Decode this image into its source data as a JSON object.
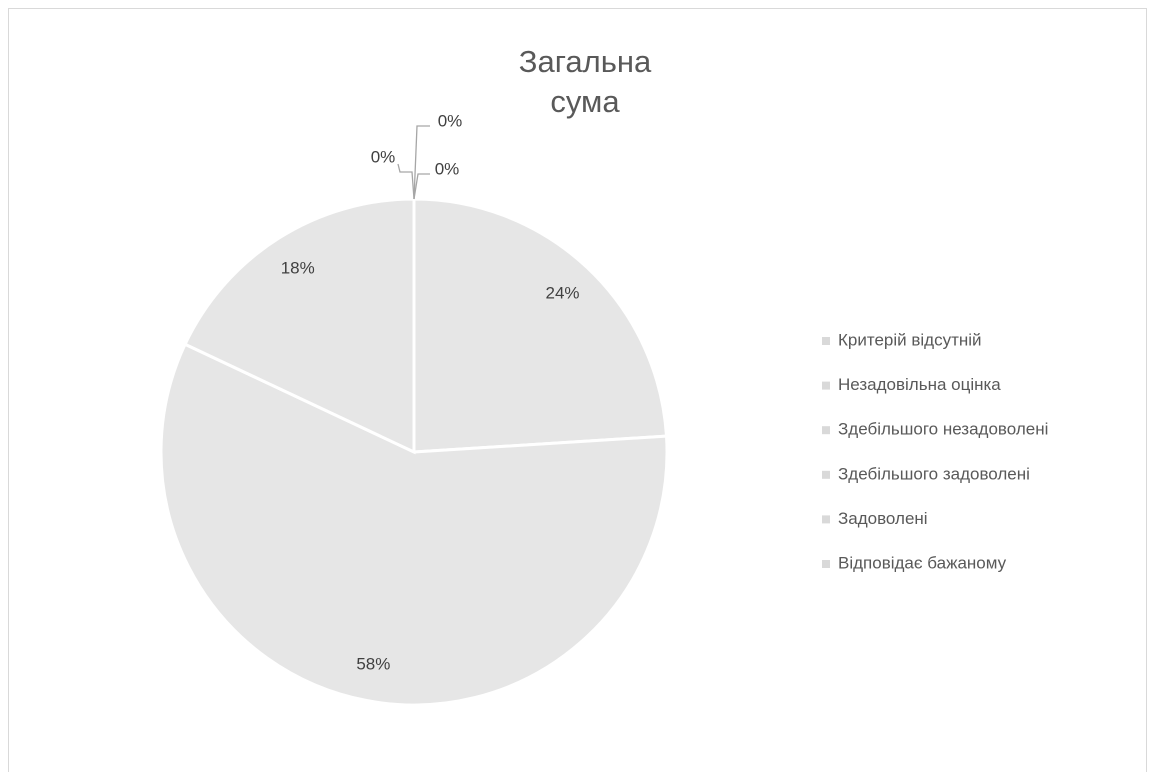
{
  "chart_data": {
    "type": "pie",
    "title": "Загальна сума",
    "categories": [
      "Критерій відсутній",
      "Незадовільна оцінка",
      "Здебільшого незадоволені",
      "Здебільшого задоволені",
      "Задоволені",
      "Відповідає бажаному"
    ],
    "values": [
      0,
      0,
      0,
      24,
      58,
      18
    ],
    "value_labels": [
      "0%",
      "0%",
      "0%",
      "24%",
      "58%",
      "18%"
    ],
    "colors": [
      "#e6e6e6",
      "#e6e6e6",
      "#e6e6e6",
      "#e6e6e6",
      "#e6e6e6",
      "#e6e6e6"
    ],
    "legend": "right"
  }
}
